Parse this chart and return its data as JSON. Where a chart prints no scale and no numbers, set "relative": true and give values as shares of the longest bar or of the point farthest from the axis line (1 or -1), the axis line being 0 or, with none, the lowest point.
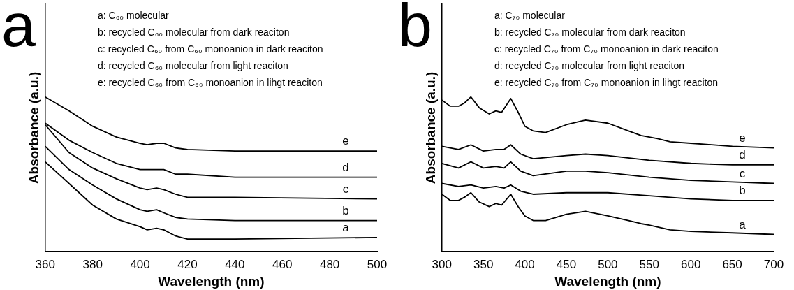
{
  "chart_data": [
    {
      "type": "line",
      "title": "a",
      "xlabel": "Wavelength (nm)",
      "ylabel": "Absorbance (a.u.)",
      "relative": true,
      "legend": false,
      "marker": "none",
      "xlim": [
        360,
        500
      ],
      "xticks": [
        360,
        380,
        400,
        420,
        440,
        460,
        480,
        500
      ],
      "annotations": [
        "a: C₆₀ molecular",
        "b: recycled C₆₀ molecular from dark reaciton",
        "c: recycled C₆₀ from C₆₀ monoanion in dark reaciton",
        "d: recycled C₆₀ molecular from light reaciton",
        "e: recycled C₆₀ from C₆₀ monoanion in lihgt reaciton"
      ],
      "x": [
        360,
        370,
        380,
        390,
        400,
        403,
        407,
        410,
        415,
        420,
        440,
        500
      ],
      "series": [
        {
          "name": "a",
          "color": "#000000",
          "values": [
            0.58,
            0.44,
            0.3,
            0.21,
            0.16,
            0.14,
            0.15,
            0.14,
            0.1,
            0.08,
            0.08,
            0.09
          ]
        },
        {
          "name": "b",
          "color": "#000000",
          "values": [
            0.68,
            0.53,
            0.43,
            0.34,
            0.27,
            0.26,
            0.27,
            0.25,
            0.22,
            0.21,
            0.2,
            0.2
          ]
        },
        {
          "name": "c",
          "color": "#000000",
          "values": [
            0.82,
            0.64,
            0.54,
            0.47,
            0.41,
            0.4,
            0.41,
            0.4,
            0.37,
            0.35,
            0.35,
            0.34
          ]
        },
        {
          "name": "d",
          "color": "#000000",
          "values": [
            0.83,
            0.72,
            0.64,
            0.57,
            0.53,
            0.53,
            0.53,
            0.53,
            0.5,
            0.5,
            0.48,
            0.48
          ]
        },
        {
          "name": "e",
          "color": "#000000",
          "values": [
            1,
            0.91,
            0.81,
            0.74,
            0.7,
            0.69,
            0.7,
            0.7,
            0.67,
            0.66,
            0.65,
            0.65
          ]
        }
      ]
    },
    {
      "type": "line",
      "title": "b",
      "xlabel": "Wavelength (nm)",
      "ylabel": "Absorbance (a.u.)",
      "relative": true,
      "legend": false,
      "marker": "none",
      "xlim": [
        300,
        700
      ],
      "xticks": [
        300,
        350,
        400,
        450,
        500,
        550,
        600,
        650,
        700
      ],
      "annotations": [
        "a: C₇₀ molecular",
        "b: recycled C₇₀ molecular from dark reaciton",
        "c: recycled C₇₀ from C₇₀ monoanion in dark reaciton",
        "d: recycled C₇₀ molecular from light reaciton",
        "e: recycled C₇₀ from C₇₀ monoanion in lihgt reaciton"
      ],
      "series": [
        {
          "name": "a",
          "color": "#000000",
          "x": [
            300,
            310,
            320,
            327,
            335,
            345,
            357,
            365,
            372,
            383,
            392,
            400,
            410,
            425,
            450,
            473,
            500,
            525,
            540,
            550,
            575,
            600,
            650,
            700
          ],
          "values": [
            0.37,
            0.33,
            0.33,
            0.35,
            0.38,
            0.32,
            0.29,
            0.31,
            0.3,
            0.37,
            0.29,
            0.23,
            0.2,
            0.2,
            0.24,
            0.26,
            0.23,
            0.2,
            0.18,
            0.17,
            0.14,
            0.13,
            0.12,
            0.11
          ]
        },
        {
          "name": "b",
          "color": "#000000",
          "x": [
            300,
            320,
            335,
            350,
            365,
            375,
            383,
            395,
            410,
            450,
            500,
            550,
            600,
            650,
            700
          ],
          "values": [
            0.44,
            0.42,
            0.43,
            0.41,
            0.42,
            0.41,
            0.43,
            0.39,
            0.37,
            0.38,
            0.38,
            0.36,
            0.34,
            0.33,
            0.33
          ]
        },
        {
          "name": "c",
          "color": "#000000",
          "x": [
            300,
            320,
            335,
            350,
            365,
            375,
            383,
            395,
            410,
            450,
            473,
            500,
            550,
            600,
            650,
            700
          ],
          "values": [
            0.57,
            0.54,
            0.58,
            0.54,
            0.55,
            0.54,
            0.58,
            0.52,
            0.49,
            0.52,
            0.52,
            0.51,
            0.48,
            0.46,
            0.45,
            0.44
          ]
        },
        {
          "name": "d",
          "color": "#000000",
          "x": [
            300,
            320,
            335,
            350,
            365,
            375,
            383,
            395,
            410,
            450,
            473,
            500,
            550,
            600,
            650,
            700
          ],
          "values": [
            0.68,
            0.66,
            0.69,
            0.65,
            0.66,
            0.66,
            0.69,
            0.63,
            0.6,
            0.62,
            0.63,
            0.62,
            0.59,
            0.57,
            0.56,
            0.56
          ]
        },
        {
          "name": "e",
          "color": "#000000",
          "x": [
            300,
            310,
            320,
            327,
            335,
            345,
            357,
            365,
            372,
            383,
            392,
            400,
            410,
            425,
            450,
            473,
            500,
            525,
            540,
            550,
            560,
            575,
            600,
            625,
            650,
            700
          ],
          "values": [
            0.98,
            0.94,
            0.94,
            0.96,
            1,
            0.93,
            0.89,
            0.91,
            0.9,
            0.99,
            0.9,
            0.81,
            0.78,
            0.77,
            0.82,
            0.85,
            0.83,
            0.78,
            0.75,
            0.74,
            0.73,
            0.71,
            0.7,
            0.69,
            0.68,
            0.67
          ]
        }
      ]
    }
  ]
}
